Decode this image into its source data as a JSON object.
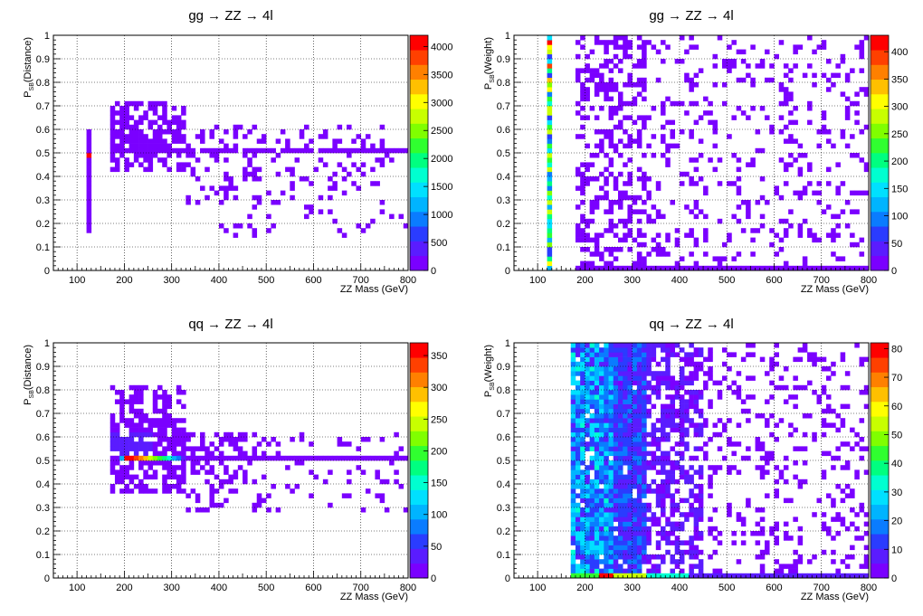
{
  "chart_data": [
    {
      "type": "heatmap",
      "title": "gg → ZZ → 4l",
      "xlabel": "ZZ Mass (GeV)",
      "ylabel_main": "P",
      "ylabel_sub": "SB",
      "ylabel_rest": "(Distance)",
      "xlim": [
        50,
        800
      ],
      "ylim": [
        0,
        1
      ],
      "x_ticks": [
        100,
        200,
        300,
        400,
        500,
        600,
        700,
        800
      ],
      "y_ticks": [
        0,
        0.1,
        0.2,
        0.3,
        0.4,
        0.5,
        0.6,
        0.7,
        0.8,
        0.9,
        1
      ],
      "zlim": [
        0,
        4200
      ],
      "z_ticks": [
        0,
        500,
        1000,
        1500,
        2000,
        2500,
        3000,
        3500,
        4000
      ],
      "grid": true,
      "pattern": "distance"
    },
    {
      "type": "heatmap",
      "title": "gg → ZZ → 4l",
      "xlabel": "ZZ Mass (GeV)",
      "ylabel_main": "P",
      "ylabel_sub": "SB",
      "ylabel_rest": "(Weight)",
      "xlim": [
        50,
        800
      ],
      "ylim": [
        0,
        1
      ],
      "x_ticks": [
        100,
        200,
        300,
        400,
        500,
        600,
        700,
        800
      ],
      "y_ticks": [
        0,
        0.1,
        0.2,
        0.3,
        0.4,
        0.5,
        0.6,
        0.7,
        0.8,
        0.9,
        1
      ],
      "zlim": [
        0,
        430
      ],
      "z_ticks": [
        0,
        50,
        100,
        150,
        200,
        250,
        300,
        350,
        400
      ],
      "grid": true,
      "pattern": "weight_gg"
    },
    {
      "type": "heatmap",
      "title": "qq → ZZ → 4l",
      "xlabel": "ZZ Mass (GeV)",
      "ylabel_main": "P",
      "ylabel_sub": "SB",
      "ylabel_rest": "(Distance)",
      "xlim": [
        50,
        800
      ],
      "ylim": [
        0,
        1
      ],
      "x_ticks": [
        100,
        200,
        300,
        400,
        500,
        600,
        700,
        800
      ],
      "y_ticks": [
        0,
        0.1,
        0.2,
        0.3,
        0.4,
        0.5,
        0.6,
        0.7,
        0.8,
        0.9,
        1
      ],
      "zlim": [
        0,
        370
      ],
      "z_ticks": [
        0,
        50,
        100,
        150,
        200,
        250,
        300,
        350
      ],
      "grid": true,
      "pattern": "distance_qq"
    },
    {
      "type": "heatmap",
      "title": "qq → ZZ → 4l",
      "xlabel": "ZZ Mass (GeV)",
      "ylabel_main": "P",
      "ylabel_sub": "SB",
      "ylabel_rest": "(Weight)",
      "xlim": [
        50,
        800
      ],
      "ylim": [
        0,
        1
      ],
      "x_ticks": [
        100,
        200,
        300,
        400,
        500,
        600,
        700,
        800
      ],
      "y_ticks": [
        0,
        0.1,
        0.2,
        0.3,
        0.4,
        0.5,
        0.6,
        0.7,
        0.8,
        0.9,
        1
      ],
      "zlim": [
        0,
        82
      ],
      "z_ticks": [
        0,
        10,
        20,
        30,
        40,
        50,
        60,
        70,
        80
      ],
      "grid": true,
      "pattern": "weight_qq"
    }
  ],
  "palette": [
    "#7a00ff",
    "#5a1cff",
    "#2a3cff",
    "#0a7cff",
    "#00b4ff",
    "#00e0ff",
    "#00ffd0",
    "#00ff80",
    "#30ff30",
    "#80ff00",
    "#c8ff00",
    "#ffff00",
    "#ffc000",
    "#ff8000",
    "#ff4000",
    "#ff0000"
  ]
}
